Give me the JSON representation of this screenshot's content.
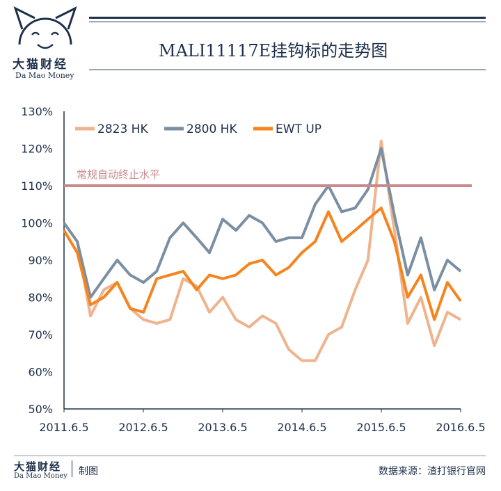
{
  "header": {
    "brand": "大猫财经",
    "brand_sub": "Da Mao Money",
    "title": "MALI11117E挂钩标的走势图"
  },
  "footer": {
    "brand": "大猫财经",
    "brand_sub": "Da Mao Money",
    "made_by": "制图",
    "source": "数据来源：渣打银行官网"
  },
  "colors": {
    "navy": "#1d2f4a",
    "ref_line": "#c98a8d",
    "s_2823": "#efb38e",
    "s_2800": "#7b8fa3",
    "s_ewt": "#f5841f"
  },
  "chart_data": {
    "type": "line",
    "x_tick_labels": [
      "2011.6.5",
      "2012.6.5",
      "2013.6.5",
      "2014.6.5",
      "2015.6.5",
      "2016.6.5"
    ],
    "y_tick_labels": [
      "50%",
      "60%",
      "70%",
      "80%",
      "90%",
      "100%",
      "110%",
      "120%",
      "130%"
    ],
    "xlim": [
      "2011-06-05",
      "2016-06-05"
    ],
    "ylim": [
      50,
      130
    ],
    "reference_line": {
      "value": 110,
      "label": "常规自动终止水平"
    },
    "legend_position": "top-left",
    "x_dates": [
      "2011-06",
      "2011-08",
      "2011-10",
      "2011-12",
      "2012-02",
      "2012-04",
      "2012-06",
      "2012-08",
      "2012-10",
      "2012-12",
      "2013-02",
      "2013-04",
      "2013-06",
      "2013-08",
      "2013-10",
      "2013-12",
      "2014-02",
      "2014-04",
      "2014-06",
      "2014-08",
      "2014-10",
      "2014-12",
      "2015-02",
      "2015-04",
      "2015-06",
      "2015-08",
      "2015-10",
      "2015-12",
      "2016-02",
      "2016-04",
      "2016-06"
    ],
    "series": [
      {
        "name": "2823 HK",
        "color": "#efb38e",
        "values": [
          100,
          95,
          75,
          82,
          84,
          77,
          74,
          73,
          74,
          85,
          83,
          76,
          80,
          74,
          72,
          75,
          73,
          66,
          63,
          63,
          70,
          72,
          82,
          90,
          122,
          98,
          73,
          80,
          67,
          76,
          74
        ]
      },
      {
        "name": "2800 HK",
        "color": "#7b8fa3",
        "values": [
          100,
          95,
          80,
          85,
          90,
          86,
          84,
          87,
          96,
          100,
          96,
          92,
          101,
          98,
          102,
          100,
          95,
          96,
          96,
          105,
          110,
          103,
          104,
          109,
          120,
          102,
          86,
          96,
          82,
          90,
          87
        ]
      },
      {
        "name": "EWT UP",
        "color": "#f5841f",
        "values": [
          98,
          92,
          78,
          80,
          84,
          77,
          76,
          85,
          86,
          87,
          82,
          86,
          85,
          86,
          89,
          90,
          86,
          88,
          92,
          95,
          103,
          95,
          98,
          101,
          104,
          95,
          80,
          86,
          74,
          84,
          79
        ]
      }
    ]
  }
}
